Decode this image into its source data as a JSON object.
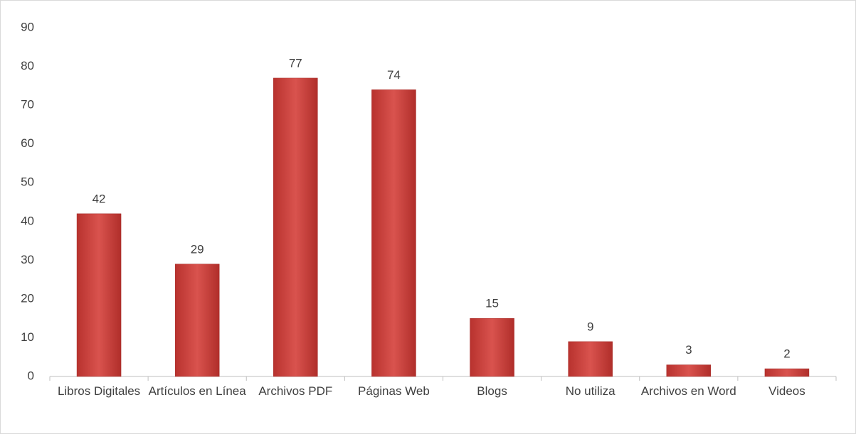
{
  "chart_data": {
    "type": "bar",
    "categories": [
      "Libros Digitales",
      "Artículos en Línea",
      "Archivos PDF",
      "Páginas Web",
      "Blogs",
      "No utiliza",
      "Archivos en Word",
      "Videos"
    ],
    "values": [
      42,
      29,
      77,
      74,
      15,
      9,
      3,
      2
    ],
    "color": "#d24a45",
    "ylim": [
      0,
      90
    ],
    "yticks": [
      0,
      10,
      20,
      30,
      40,
      50,
      60,
      70,
      80,
      90
    ],
    "grid": false
  }
}
